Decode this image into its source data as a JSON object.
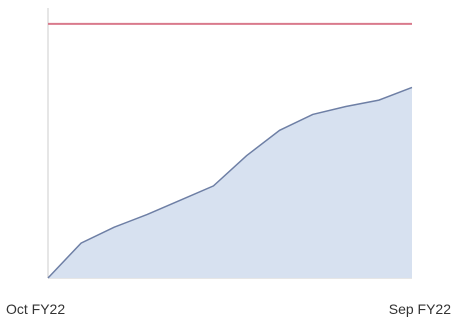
{
  "chart_data": {
    "type": "area",
    "x": [
      "Oct FY22",
      "",
      "",
      "",
      "",
      "",
      "",
      "",
      "",
      "",
      "",
      "Sep FY22"
    ],
    "series": [
      {
        "values": [
          0,
          22,
          32,
          40,
          49,
          58,
          77,
          93,
          103,
          108,
          112,
          120
        ]
      }
    ],
    "target_line": 160,
    "ylim": [
      0,
      170
    ],
    "xlabel": "",
    "ylabel": "",
    "title": "",
    "grid": false,
    "legend": "none",
    "x_tick_labels": [
      "Oct FY22",
      "Sep FY22"
    ],
    "colors": {
      "area_fill": "#d7e1f0",
      "area_line": "#6e7fa5",
      "target_line": "#d97a8c",
      "axis": "#cccccc"
    }
  }
}
